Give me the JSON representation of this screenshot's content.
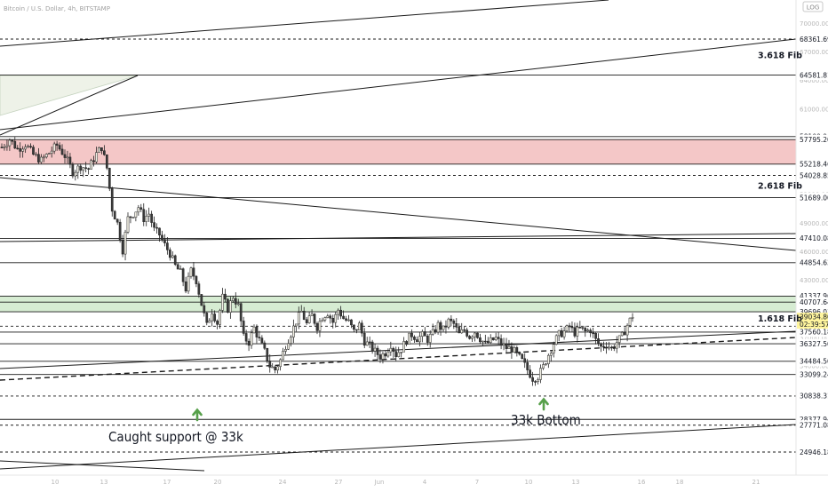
{
  "header": {
    "title": "Bitcoin / U.S. Dollar, 4h, BITSTAMP"
  },
  "toolbar": {
    "log_label": "LOG"
  },
  "price_axis": {
    "ticks": [
      {
        "label": "70000.00",
        "value": 70000
      },
      {
        "label": "67000.00",
        "value": 67000
      },
      {
        "label": "64000.00",
        "value": 64000
      },
      {
        "label": "61000.00",
        "value": 61000
      },
      {
        "label": "58000.00",
        "value": 58000
      },
      {
        "label": "55000.00",
        "value": 55000
      },
      {
        "label": "52000.00",
        "value": 52000
      },
      {
        "label": "49000.00",
        "value": 49000
      },
      {
        "label": "46000.00",
        "value": 46000
      },
      {
        "label": "43000.00",
        "value": 43000
      },
      {
        "label": "37000.00",
        "value": 37000
      },
      {
        "label": "34000.00",
        "value": 34000
      },
      {
        "label": "31000.00",
        "value": 31000
      },
      {
        "label": "28000.00",
        "value": 28000
      },
      {
        "label": "25000.00",
        "value": 25000
      }
    ]
  },
  "time_axis": {
    "ticks": [
      "10",
      "13",
      "17",
      "20",
      "24",
      "27",
      "Jun",
      "4",
      "7",
      "10",
      "13",
      "16",
      "18",
      "21"
    ]
  },
  "levels": [
    {
      "label": "68361.69",
      "value": 68361.69,
      "style": "dashed"
    },
    {
      "label": "64581.81",
      "value": 64581.81,
      "style": "solid"
    },
    {
      "label": "58109.96",
      "value": 58109.96,
      "style": "solid"
    },
    {
      "label": "57795.20",
      "value": 57795.2,
      "style": "solid"
    },
    {
      "label": "55218.46",
      "value": 55218.46,
      "style": "solid"
    },
    {
      "label": "54028.85",
      "value": 54028.85,
      "style": "dashed"
    },
    {
      "label": "51689.00",
      "value": 51689,
      "style": "solid"
    },
    {
      "label": "47410.08",
      "value": 47410.08,
      "style": "solid"
    },
    {
      "label": "44854.63",
      "value": 44854.63,
      "style": "solid"
    },
    {
      "label": "41337.96",
      "value": 41337.96,
      "style": "solid"
    },
    {
      "label": "40707.64",
      "value": 40707.64,
      "style": "solid"
    },
    {
      "label": "39696.01",
      "value": 39696.01,
      "style": "solid"
    },
    {
      "label": "38173.73",
      "value": 38173.73,
      "style": "dashed"
    },
    {
      "label": "37560.18",
      "value": 37560.18,
      "style": "solid"
    },
    {
      "label": "36327.50",
      "value": 36327.5,
      "style": "solid"
    },
    {
      "label": "34484.50",
      "value": 34484.5,
      "style": "solid"
    },
    {
      "label": "33099.24",
      "value": 33099.24,
      "style": "solid"
    },
    {
      "label": "30838.31",
      "value": 30838.31,
      "style": "dashed"
    },
    {
      "label": "28377.94",
      "value": 28377.94,
      "style": "solid"
    },
    {
      "label": "27771.08",
      "value": 27771.08,
      "style": "dashed"
    },
    {
      "label": "24946.18",
      "value": 24946.18,
      "style": "dashed"
    }
  ],
  "current_price": {
    "label": "39034.80",
    "value": 39034.8,
    "countdown": "02:39:57",
    "color": "#fff59d"
  },
  "fib_labels": [
    {
      "text": "3.618 Fib",
      "value": 66700
    },
    {
      "text": "2.618 Fib",
      "value": 52950
    },
    {
      "text": "1.618 Fib",
      "value": 39010
    }
  ],
  "zones": [
    {
      "name": "red-resistance-zone",
      "from": 55218.46,
      "to": 57795.2,
      "color": "#f4c7c7"
    },
    {
      "name": "green-support-zone",
      "from": 39696.01,
      "to": 41337.96,
      "color": "#d6ecd2"
    }
  ],
  "annotations": [
    {
      "text": "Caught support @ 33k"
    },
    {
      "text": "33k Bottom"
    }
  ],
  "colors": {
    "up": "#f3f1e6",
    "down": "#3a3a3a",
    "wick": "#222222",
    "accent_arrow": "#57a04b"
  },
  "chart_data": {
    "type": "candlestick",
    "title": "Bitcoin / U.S. Dollar, 4h, BITSTAMP",
    "ylim": [
      24000,
      72000
    ],
    "close_points": [
      [
        0,
        57000
      ],
      [
        3,
        57800
      ],
      [
        6,
        56800
      ],
      [
        9,
        57300
      ],
      [
        12,
        56200
      ],
      [
        15,
        55600
      ],
      [
        18,
        56400
      ],
      [
        21,
        57200
      ],
      [
        24,
        56100
      ],
      [
        27,
        54400
      ],
      [
        30,
        55000
      ],
      [
        33,
        54700
      ],
      [
        36,
        56300
      ],
      [
        38,
        57000
      ],
      [
        40,
        54800
      ],
      [
        42,
        50500
      ],
      [
        44,
        49000
      ],
      [
        46,
        46200
      ],
      [
        48,
        49500
      ],
      [
        50,
        50000
      ],
      [
        52,
        50700
      ],
      [
        54,
        49500
      ],
      [
        56,
        50000
      ],
      [
        58,
        48300
      ],
      [
        60,
        47800
      ],
      [
        62,
        46700
      ],
      [
        64,
        45800
      ],
      [
        66,
        44500
      ],
      [
        68,
        43800
      ],
      [
        70,
        42100
      ],
      [
        72,
        44000
      ],
      [
        74,
        43000
      ],
      [
        76,
        40500
      ],
      [
        78,
        38200
      ],
      [
        80,
        39800
      ],
      [
        82,
        38500
      ],
      [
        84,
        41200
      ],
      [
        86,
        40000
      ],
      [
        88,
        41300
      ],
      [
        90,
        40300
      ],
      [
        92,
        37000
      ],
      [
        94,
        36500
      ],
      [
        96,
        38000
      ],
      [
        98,
        36700
      ],
      [
        100,
        35500
      ],
      [
        102,
        34000
      ],
      [
        104,
        33600
      ],
      [
        106,
        34600
      ],
      [
        108,
        36200
      ],
      [
        110,
        37400
      ],
      [
        112,
        38700
      ],
      [
        114,
        39700
      ],
      [
        116,
        38400
      ],
      [
        118,
        39300
      ],
      [
        120,
        38100
      ],
      [
        122,
        39200
      ],
      [
        124,
        39600
      ],
      [
        126,
        38600
      ],
      [
        128,
        39900
      ],
      [
        130,
        39000
      ],
      [
        132,
        38600
      ],
      [
        134,
        37600
      ],
      [
        136,
        38300
      ],
      [
        138,
        36600
      ],
      [
        140,
        36100
      ],
      [
        142,
        35500
      ],
      [
        144,
        35000
      ],
      [
        146,
        35400
      ],
      [
        148,
        36300
      ],
      [
        150,
        35200
      ],
      [
        152,
        35800
      ],
      [
        154,
        36700
      ],
      [
        156,
        37300
      ],
      [
        158,
        36900
      ],
      [
        160,
        37200
      ],
      [
        162,
        36800
      ],
      [
        164,
        37400
      ],
      [
        166,
        38300
      ],
      [
        168,
        37800
      ],
      [
        170,
        38700
      ],
      [
        172,
        38400
      ],
      [
        174,
        37300
      ],
      [
        176,
        37800
      ],
      [
        178,
        37100
      ],
      [
        180,
        37600
      ],
      [
        182,
        36900
      ],
      [
        184,
        36300
      ],
      [
        186,
        36600
      ],
      [
        188,
        36900
      ],
      [
        190,
        36300
      ],
      [
        192,
        35900
      ],
      [
        194,
        35800
      ],
      [
        196,
        35200
      ],
      [
        198,
        34500
      ],
      [
        200,
        33600
      ],
      [
        202,
        32700
      ],
      [
        204,
        32900
      ],
      [
        206,
        33900
      ],
      [
        208,
        35200
      ],
      [
        210,
        36400
      ],
      [
        212,
        37300
      ],
      [
        214,
        37600
      ],
      [
        216,
        38100
      ],
      [
        218,
        37500
      ],
      [
        220,
        37900
      ],
      [
        222,
        37600
      ],
      [
        224,
        37800
      ],
      [
        226,
        36700
      ],
      [
        228,
        36000
      ],
      [
        230,
        36300
      ],
      [
        232,
        35800
      ],
      [
        234,
        36500
      ],
      [
        236,
        37100
      ],
      [
        238,
        38300
      ],
      [
        240,
        39300
      ]
    ]
  }
}
